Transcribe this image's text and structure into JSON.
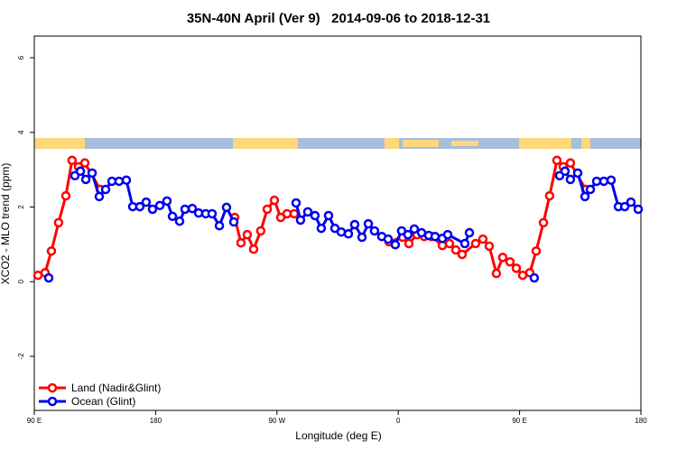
{
  "chart_data": {
    "type": "line",
    "title": "35N-40N April (Ver 9)   2014-09-06 to 2018-12-31",
    "x_label": "Longitude (deg E)",
    "y_label": "XCO2 - MLO trend (ppm)",
    "xlim": [
      90,
      540
    ],
    "ylim": [
      -3.45,
      6.58
    ],
    "xticks": [
      {
        "value": 90,
        "label": "90 E"
      },
      180,
      {
        "value": 270,
        "label": "90 W"
      },
      {
        "value": 360,
        "label": "0"
      },
      {
        "value": 450,
        "label": "90 E"
      },
      {
        "value": 540,
        "label": "180"
      }
    ],
    "yticks": [
      -2,
      0,
      2,
      4,
      6
    ],
    "legend": "bottom-left",
    "series": [
      {
        "name": "Land (Nadir&Glint)",
        "color": "#ff0000",
        "x": [
          92.7,
          98,
          102.7,
          108,
          113.4,
          118,
          122.8,
          127.5,
          138.9,
          null,
          238.7,
          243.3,
          248,
          252.7,
          258,
          262.8,
          268.1,
          272.8,
          277.5,
          282.8,
          null,
          353.2,
          363.2,
          367.9,
          373.9,
          379.3,
          384.6,
          392.7,
          398,
          402.7,
          407.4,
          417.4,
          422.8,
          427.5,
          432.8,
          437.5,
          442.9,
          447.6,
          452.3,
          457.6,
          462.3,
          467.7,
          472.3,
          477.7,
          482.4,
          487.7,
          499.1
        ],
        "values": [
          0.17,
          0.24,
          0.82,
          1.58,
          2.3,
          3.25,
          3.08,
          3.18,
          2.47,
          null,
          1.72,
          1.04,
          1.26,
          0.87,
          1.36,
          1.94,
          2.18,
          1.72,
          1.82,
          1.82,
          null,
          1.07,
          1.19,
          1.02,
          1.26,
          1.21,
          1.21,
          0.97,
          1.02,
          0.85,
          0.73,
          1.02,
          1.14,
          0.95,
          0.22,
          0.65,
          0.53,
          0.36,
          0.17,
          0.24,
          0.82,
          1.58,
          2.3,
          3.25,
          3.08,
          3.18,
          2.47
        ]
      },
      {
        "name": "Ocean (Glint)",
        "color": "#0000ee",
        "x": [
          100.7,
          null,
          120.1,
          124.2,
          128.2,
          132.9,
          138.2,
          142.9,
          147.6,
          152.9,
          158.3,
          163,
          168.3,
          173,
          177.7,
          183.1,
          188.4,
          192.5,
          197.8,
          201.8,
          207.2,
          211.9,
          217.2,
          221.9,
          227.3,
          232.6,
          238,
          null,
          284.2,
          287.5,
          292.9,
          298.2,
          302.9,
          308.3,
          313,
          317.7,
          323,
          327.7,
          333.1,
          337.8,
          342.4,
          347.8,
          352.5,
          357.8,
          362.5,
          367.2,
          371.9,
          377.3,
          382.6,
          387.3,
          392.7,
          396.7,
          409.4,
          412.8,
          null,
          460.9,
          null,
          479.7,
          483.7,
          487.7,
          493.1,
          498.5,
          502.5,
          507.2,
          512.5,
          517.9,
          523.3,
          528,
          532.6,
          538
        ],
        "values": [
          0.1,
          null,
          2.84,
          2.96,
          2.74,
          2.91,
          2.28,
          2.47,
          2.69,
          2.69,
          2.72,
          2.01,
          2.01,
          2.13,
          1.94,
          2.04,
          2.16,
          1.75,
          1.62,
          1.94,
          1.96,
          1.84,
          1.82,
          1.82,
          1.5,
          1.99,
          1.6,
          null,
          2.11,
          1.65,
          1.87,
          1.77,
          1.43,
          1.77,
          1.43,
          1.33,
          1.28,
          1.53,
          1.19,
          1.55,
          1.36,
          1.21,
          1.14,
          0.99,
          1.36,
          1.26,
          1.41,
          1.31,
          1.24,
          1.21,
          1.16,
          1.26,
          1.02,
          1.31,
          null,
          0.1,
          null,
          2.84,
          2.96,
          2.74,
          2.91,
          2.28,
          2.47,
          2.69,
          2.69,
          2.72,
          2.01,
          2.01,
          2.13,
          1.94
        ]
      }
    ]
  }
}
